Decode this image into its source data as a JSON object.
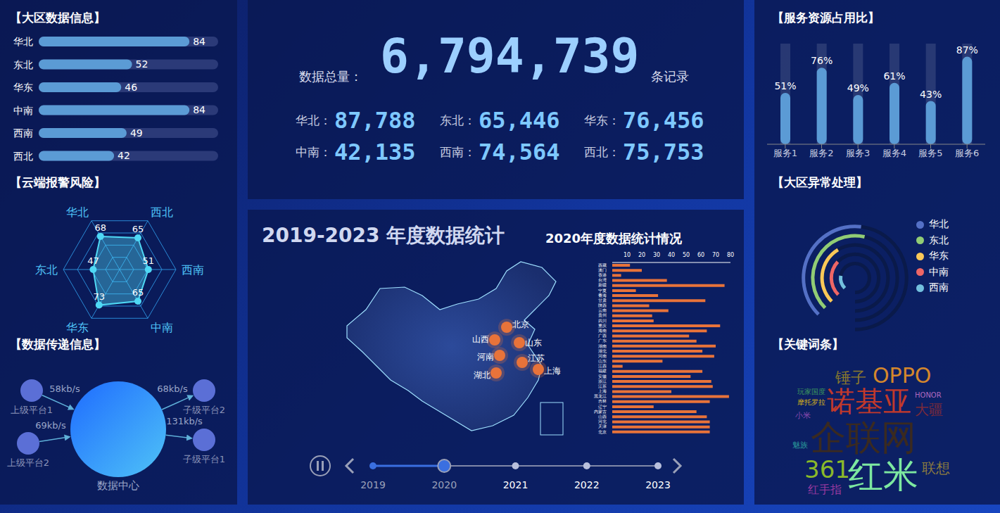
{
  "header": {
    "label": "数据总量：",
    "total": "6,794,739",
    "unit": "条记录",
    "regions": [
      {
        "label": "华北：",
        "value": "87,788"
      },
      {
        "label": "东北：",
        "value": "65,446"
      },
      {
        "label": "华东：",
        "value": "76,456"
      },
      {
        "label": "中南：",
        "value": "42,135"
      },
      {
        "label": "西南：",
        "value": "74,564"
      },
      {
        "label": "西北：",
        "value": "75,753"
      }
    ]
  },
  "chart_data": [
    {
      "title": "【大区数据信息】",
      "type": "bar",
      "orientation": "horizontal",
      "categories": [
        "华北",
        "东北",
        "华东",
        "中南",
        "西南",
        "西北"
      ],
      "values": [
        84,
        52,
        46,
        84,
        49,
        42
      ],
      "color": "#5b9bd5",
      "xlim": [
        0,
        100
      ],
      "data_labels": true,
      "tick_labels": "y"
    },
    {
      "title": "【云端报警风险】",
      "type": "radar",
      "categories": [
        "华北",
        "西北",
        "西南",
        "中南",
        "华东",
        "东北"
      ],
      "values": [
        68,
        65,
        51,
        65,
        73,
        47
      ],
      "color": "#4fd8f5",
      "ylim": [
        0,
        100
      ],
      "grid": true,
      "data_labels": true
    },
    {
      "title": "【服务资源占用比】",
      "type": "bar",
      "categories": [
        "服务1",
        "服务2",
        "服务3",
        "服务4",
        "服务5",
        "服务6"
      ],
      "values": [
        51,
        76,
        49,
        61,
        43,
        87
      ],
      "value_labels": [
        "51%",
        "76%",
        "49%",
        "61%",
        "43%",
        "87%"
      ],
      "color": "#5b9bd5",
      "ylim": [
        0,
        100
      ],
      "data_labels": true,
      "tick_labels": "x"
    },
    {
      "title": "【大区异常处理】",
      "type": "radial_bar",
      "categories": [
        "华北",
        "东北",
        "华东",
        "中南",
        "西南"
      ],
      "values": [
        45,
        47,
        33,
        28,
        17
      ],
      "colors": [
        "#5470c6",
        "#91cc75",
        "#fac858",
        "#ee6666",
        "#73c0de"
      ],
      "ylim": [
        0,
        100
      ],
      "legend": "right",
      "tick_labels": false
    },
    {
      "title": "2020年度数据统计情况",
      "type": "bar",
      "orientation": "horizontal",
      "categories": [
        "西藏",
        "澳门",
        "香港",
        "台湾",
        "新疆",
        "宁夏",
        "青海",
        "甘肃",
        "陕西",
        "云南",
        "贵州",
        "四川",
        "重庆",
        "海南",
        "广西",
        "广东",
        "湖南",
        "湖北",
        "河南",
        "山东",
        "江西",
        "福建",
        "安徽",
        "浙江",
        "江苏",
        "上海",
        "黑龙江",
        "吉林",
        "辽宁",
        "内蒙古",
        "山西",
        "河北",
        "天津",
        "北京"
      ],
      "values": [
        12,
        20,
        6,
        37,
        76,
        16,
        31,
        63,
        25,
        38,
        27,
        28,
        73,
        64,
        52,
        57,
        70,
        61,
        69,
        34,
        7,
        61,
        53,
        67,
        68,
        40,
        79,
        66,
        28,
        57,
        64,
        66,
        66,
        66
      ],
      "color": "#e8733a",
      "xlim": [
        0,
        80
      ],
      "xticks": [
        10,
        20,
        30,
        40,
        50,
        60,
        70,
        80
      ],
      "grid": false
    }
  ],
  "transfer": {
    "title": "【数据传递信息】",
    "nodes": [
      {
        "label": "上级平台1"
      },
      {
        "label": "上级平台2"
      },
      {
        "label": "数据中心"
      },
      {
        "label": "子级平台2"
      },
      {
        "label": "子级平台1"
      }
    ],
    "edges": [
      {
        "from": 0,
        "to": 2,
        "label": "58kb/s"
      },
      {
        "from": 1,
        "to": 2,
        "label": "69kb/s"
      },
      {
        "from": 2,
        "to": 3,
        "label": "68kb/s"
      },
      {
        "from": 2,
        "to": 4,
        "label": "131kb/s"
      }
    ]
  },
  "map": {
    "title": "2019-2023 年度数据统计",
    "labels": [
      "北京",
      "山西",
      "山东",
      "河南",
      "江苏",
      "上海",
      "湖北"
    ],
    "timeline": {
      "years": [
        "2019",
        "2020",
        "2021",
        "2022",
        "2023"
      ],
      "current": "2020"
    }
  },
  "keywords": {
    "title": "【关键词条】",
    "words": [
      {
        "text": "锤子",
        "color": "#8a7a2c",
        "weight": 22
      },
      {
        "text": "OPPO",
        "color": "#d4872c",
        "weight": 30
      },
      {
        "text": "玩家国度",
        "color": "#3d9a5e",
        "weight": 10
      },
      {
        "text": "HONOR",
        "color": "#b06ac0",
        "weight": 10
      },
      {
        "text": "摩托罗拉",
        "color": "#d4b21a",
        "weight": 10
      },
      {
        "text": "诺基亚",
        "color": "#c0392b",
        "weight": 40
      },
      {
        "text": "大疆",
        "color": "#7a2a3a",
        "weight": 20
      },
      {
        "text": "小米",
        "color": "#8a4ab0",
        "weight": 11
      },
      {
        "text": "企联网",
        "color": "#3a2a20",
        "weight": 50
      },
      {
        "text": "魅族",
        "color": "#2a9a9a",
        "weight": 11
      },
      {
        "text": "361",
        "color": "#8ab82a",
        "weight": 34
      },
      {
        "text": "红米",
        "color": "#7de8a0",
        "weight": 50
      },
      {
        "text": "联想",
        "color": "#8a7a40",
        "weight": 20
      },
      {
        "text": "红手指",
        "color": "#9a3aa0",
        "weight": 16
      }
    ]
  }
}
